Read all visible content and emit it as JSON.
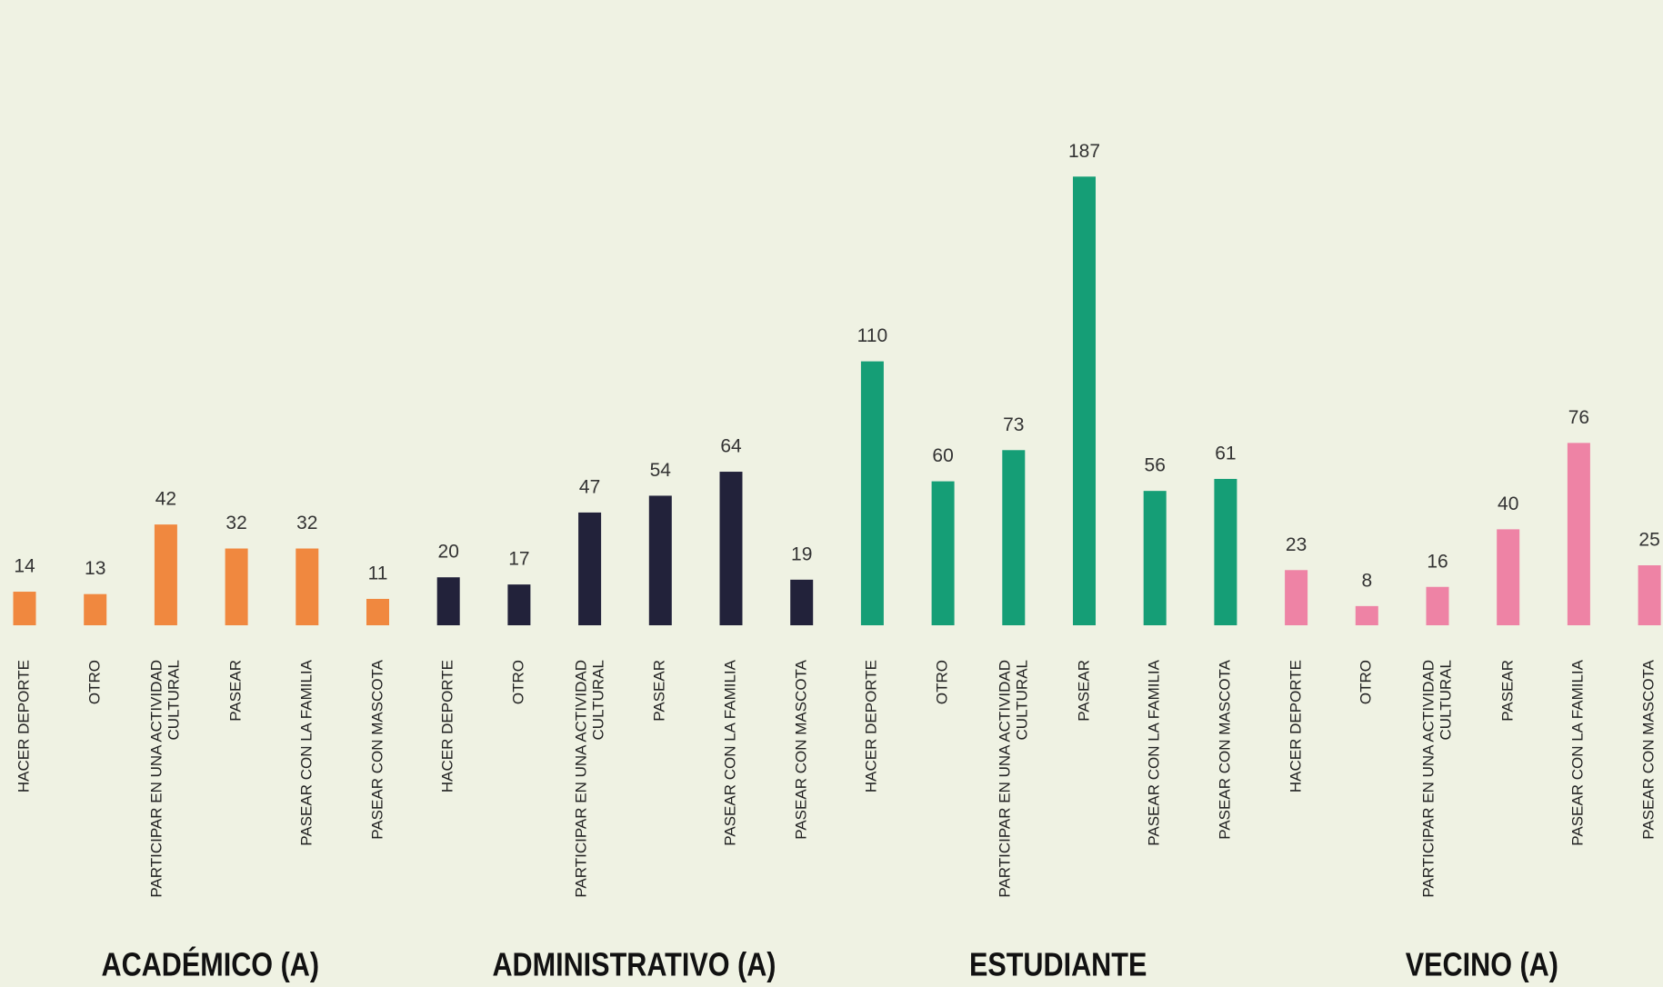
{
  "chart_data": {
    "type": "bar",
    "categories": [
      "HACER DEPORTE",
      "OTRO",
      "PARTICIPAR EN UNA ACTIVIDAD CULTURAL",
      "PASEAR",
      "PASEAR CON LA FAMILIA",
      "PASEAR CON MASCOTA"
    ],
    "series": [
      {
        "name": "ACADÉMICO (A)",
        "color": "#f0883f",
        "values": [
          14,
          13,
          42,
          32,
          32,
          11
        ]
      },
      {
        "name": "ADMINISTRATIVO (A)",
        "color": "#22223a",
        "values": [
          20,
          17,
          47,
          54,
          64,
          19
        ]
      },
      {
        "name": "ESTUDIANTE",
        "color": "#159e76",
        "values": [
          110,
          60,
          73,
          187,
          56,
          61
        ]
      },
      {
        "name": "VECINO (A)",
        "color": "#ee83a5",
        "values": [
          23,
          8,
          16,
          40,
          76,
          25
        ]
      }
    ]
  }
}
